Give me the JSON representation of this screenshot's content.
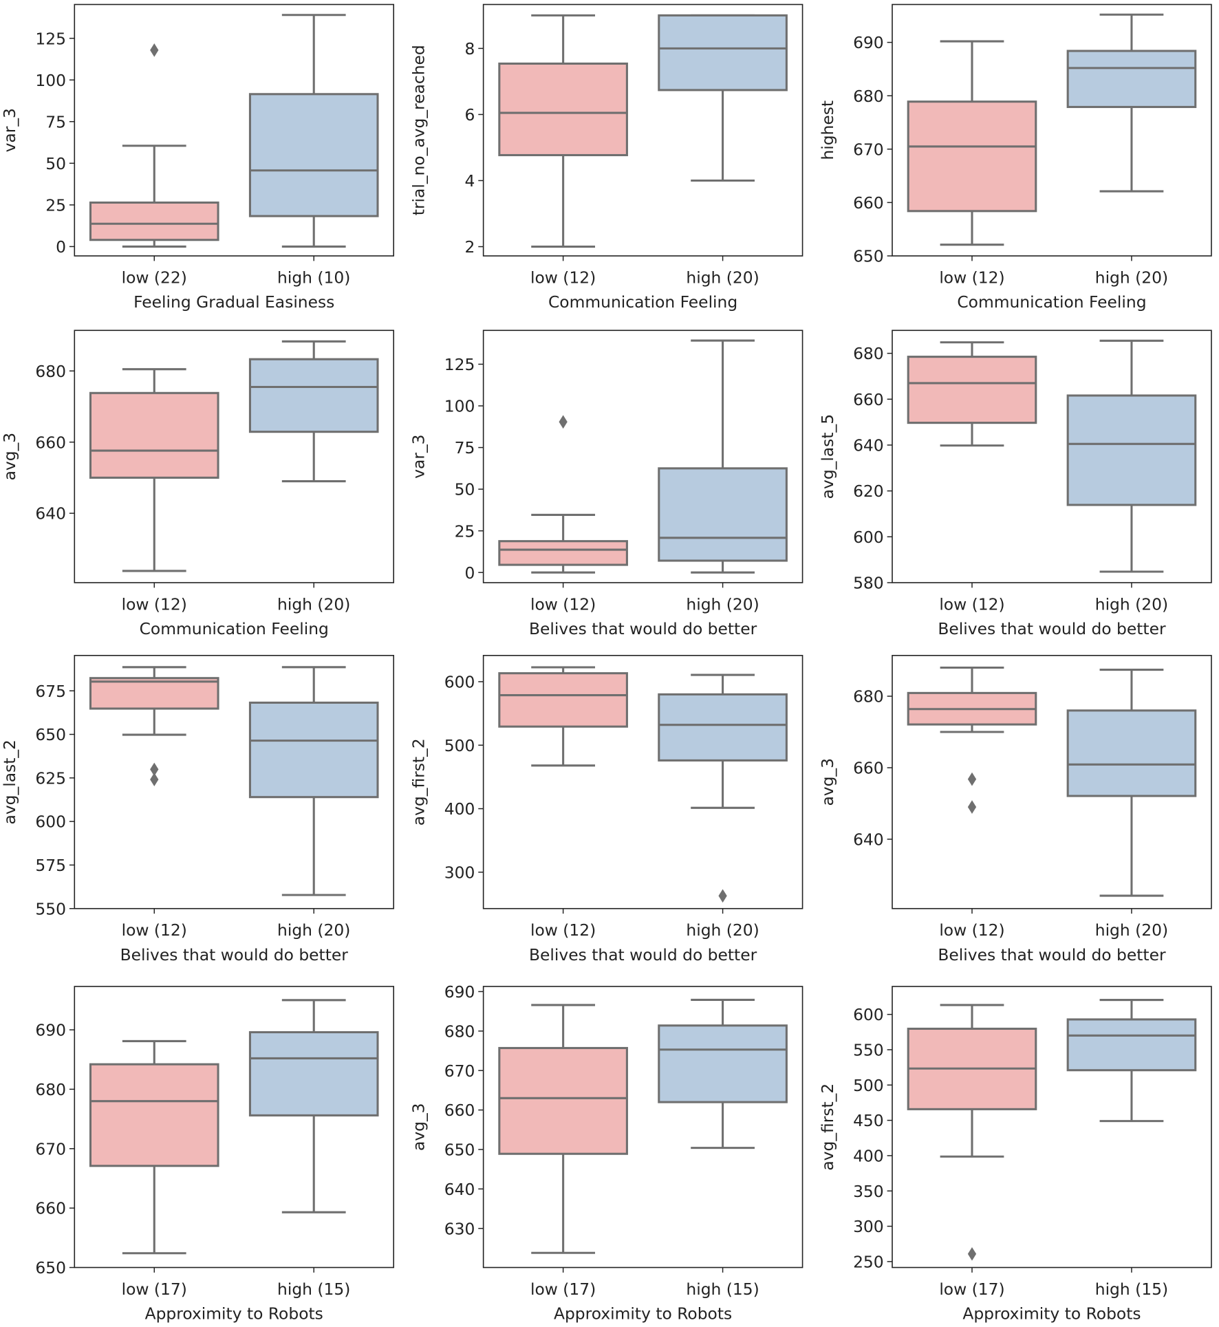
{
  "colors": {
    "low": "#f1b9b8",
    "high": "#b7cbdf",
    "line": "#6f6f6f"
  },
  "chart_data": [
    {
      "type": "box",
      "ylabel": "var_3",
      "xlabel": "Feeling Gradual Easiness",
      "categories": [
        "low (22)",
        "high (10)"
      ],
      "yticks": [
        0,
        25,
        50,
        75,
        100,
        125
      ],
      "ylim": [
        -5.6,
        145.3
      ],
      "boxes": [
        {
          "whislo": 0,
          "q1": 4,
          "med": 13.7,
          "q3": 26.4,
          "whishi": 60.5,
          "fliers": [
            117.9
          ]
        },
        {
          "whislo": 0,
          "q1": 18.3,
          "med": 45.7,
          "q3": 91.5,
          "whishi": 139,
          "fliers": []
        }
      ]
    },
    {
      "type": "box",
      "ylabel": "trial_no_avg_reached",
      "xlabel": "Communication Feeling",
      "categories": [
        "low (12)",
        "high (20)"
      ],
      "yticks": [
        2,
        4,
        6,
        8
      ],
      "ylim": [
        1.72,
        9.33
      ],
      "boxes": [
        {
          "whislo": 2,
          "q1": 4.77,
          "med": 6.05,
          "q3": 7.54,
          "whishi": 9,
          "fliers": []
        },
        {
          "whislo": 4,
          "q1": 6.74,
          "med": 8,
          "q3": 9,
          "whishi": 9,
          "fliers": []
        }
      ]
    },
    {
      "type": "box",
      "ylabel": "highest",
      "xlabel": "Communication Feeling",
      "categories": [
        "low (12)",
        "high (20)"
      ],
      "yticks": [
        650,
        660,
        670,
        680,
        690
      ],
      "ylim": [
        650,
        697.1
      ],
      "boxes": [
        {
          "whislo": 652.1,
          "q1": 658.4,
          "med": 670.5,
          "q3": 678.9,
          "whishi": 690.2,
          "fliers": []
        },
        {
          "whislo": 662.1,
          "q1": 677.9,
          "med": 685.2,
          "q3": 688.4,
          "whishi": 695.2,
          "fliers": []
        }
      ]
    },
    {
      "type": "box",
      "ylabel": "avg_3",
      "xlabel": "Communication Feeling",
      "categories": [
        "low (12)",
        "high (20)"
      ],
      "yticks": [
        640,
        660,
        680
      ],
      "ylim": [
        620.5,
        691.4
      ],
      "boxes": [
        {
          "whislo": 623.8,
          "q1": 650,
          "med": 657.6,
          "q3": 673.8,
          "whishi": 680.5,
          "fliers": []
        },
        {
          "whislo": 649,
          "q1": 662.9,
          "med": 675.5,
          "q3": 683.3,
          "whishi": 688.3,
          "fliers": []
        }
      ]
    },
    {
      "type": "box",
      "ylabel": "var_3",
      "xlabel": "Belives that would do better",
      "categories": [
        "low (12)",
        "high (20)"
      ],
      "yticks": [
        0,
        25,
        50,
        75,
        100,
        125
      ],
      "ylim": [
        -6.1,
        145.3
      ],
      "boxes": [
        {
          "whislo": 0,
          "q1": 4.6,
          "med": 13.7,
          "q3": 18.8,
          "whishi": 34.6,
          "fliers": [
            90.4
          ]
        },
        {
          "whislo": 0,
          "q1": 7.1,
          "med": 20.8,
          "q3": 62.5,
          "whishi": 139.2,
          "fliers": []
        }
      ]
    },
    {
      "type": "box",
      "ylabel": "avg_last_5",
      "xlabel": "Belives that would do better",
      "categories": [
        "low (12)",
        "high (20)"
      ],
      "yticks": [
        580,
        600,
        620,
        640,
        660,
        680
      ],
      "ylim": [
        580,
        690
      ],
      "boxes": [
        {
          "whislo": 639.8,
          "q1": 649.7,
          "med": 667,
          "q3": 678.5,
          "whishi": 684.8,
          "fliers": []
        },
        {
          "whislo": 584.8,
          "q1": 613.9,
          "med": 640.5,
          "q3": 661.6,
          "whishi": 685.5,
          "fliers": []
        }
      ]
    },
    {
      "type": "box",
      "ylabel": "avg_last_2",
      "xlabel": "Belives that would do better",
      "categories": [
        "low (12)",
        "high (20)"
      ],
      "yticks": [
        550,
        575,
        600,
        625,
        650,
        675
      ],
      "ylim": [
        550,
        695.3
      ],
      "boxes": [
        {
          "whislo": 649.8,
          "q1": 664.8,
          "med": 680.3,
          "q3": 682.3,
          "whishi": 688.6,
          "fliers": [
            629.9,
            624.1
          ]
        },
        {
          "whislo": 557.8,
          "q1": 614,
          "med": 646.4,
          "q3": 668.2,
          "whishi": 688.6,
          "fliers": []
        }
      ]
    },
    {
      "type": "box",
      "ylabel": "avg_first_2",
      "xlabel": "Belives that would do better",
      "categories": [
        "low (12)",
        "high (20)"
      ],
      "yticks": [
        300,
        400,
        500,
        600
      ],
      "ylim": [
        242.7,
        641.3
      ],
      "boxes": [
        {
          "whislo": 468,
          "q1": 529.3,
          "med": 578.7,
          "q3": 613.3,
          "whishi": 622.7,
          "fliers": []
        },
        {
          "whislo": 401.3,
          "q1": 476,
          "med": 532,
          "q3": 580,
          "whishi": 610.7,
          "fliers": [
            262.7
          ]
        }
      ]
    },
    {
      "type": "box",
      "ylabel": "avg_3",
      "xlabel": "Belives that would do better",
      "categories": [
        "low (12)",
        "high (20)"
      ],
      "yticks": [
        640,
        660,
        680
      ],
      "ylim": [
        620.6,
        691.4
      ],
      "boxes": [
        {
          "whislo": 670,
          "q1": 672.1,
          "med": 676.4,
          "q3": 680.9,
          "whishi": 688,
          "fliers": [
            656.8,
            649
          ]
        },
        {
          "whislo": 624.2,
          "q1": 652.1,
          "med": 660.9,
          "q3": 676,
          "whishi": 687.4,
          "fliers": []
        }
      ]
    },
    {
      "type": "box",
      "ylabel": "",
      "xlabel": "Approximity to Robots",
      "categories": [
        "low (17)",
        "high (15)"
      ],
      "yticks": [
        650,
        660,
        670,
        680,
        690
      ],
      "ylim": [
        650,
        697.3
      ],
      "boxes": [
        {
          "whislo": 652.4,
          "q1": 667.1,
          "med": 678,
          "q3": 684.2,
          "whishi": 688.1,
          "fliers": []
        },
        {
          "whislo": 659.3,
          "q1": 675.6,
          "med": 685.2,
          "q3": 689.6,
          "whishi": 695,
          "fliers": []
        }
      ]
    },
    {
      "type": "box",
      "ylabel": "avg_3",
      "xlabel": "Approximity to Robots",
      "categories": [
        "low (17)",
        "high (15)"
      ],
      "yticks": [
        630,
        640,
        650,
        660,
        670,
        680,
        690
      ],
      "ylim": [
        620.1,
        691.3
      ],
      "boxes": [
        {
          "whislo": 623.8,
          "q1": 648.9,
          "med": 663,
          "q3": 675.7,
          "whishi": 686.6,
          "fliers": []
        },
        {
          "whislo": 650.4,
          "q1": 662,
          "med": 675.3,
          "q3": 681.4,
          "whishi": 687.9,
          "fliers": []
        }
      ]
    },
    {
      "type": "box",
      "ylabel": "avg_first_2",
      "xlabel": "Approximity to Robots",
      "categories": [
        "low (17)",
        "high (15)"
      ],
      "yticks": [
        250,
        300,
        350,
        400,
        450,
        500,
        550,
        600
      ],
      "ylim": [
        241.6,
        639.6
      ],
      "boxes": [
        {
          "whislo": 398.7,
          "q1": 465.8,
          "med": 523.4,
          "q3": 579.7,
          "whishi": 613.3,
          "fliers": [
            260.8
          ]
        },
        {
          "whislo": 449,
          "q1": 521,
          "med": 570.1,
          "q3": 592.9,
          "whishi": 620.5,
          "fliers": []
        }
      ]
    }
  ]
}
